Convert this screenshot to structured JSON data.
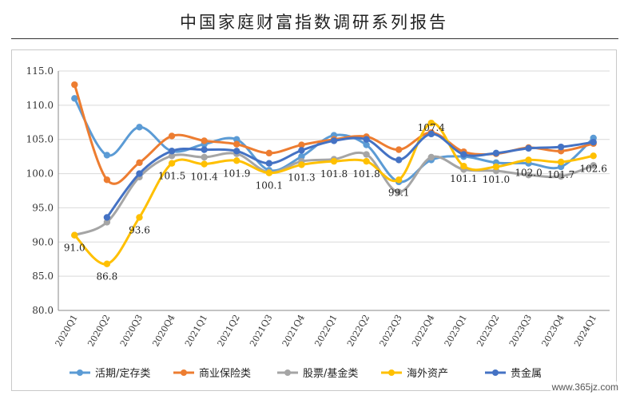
{
  "header": {
    "title": "中国家庭财富指数调研系列报告"
  },
  "watermark": "www.365jz.com",
  "chart_data": {
    "type": "line",
    "title": "",
    "xlabel": "",
    "ylabel": "",
    "ylim": [
      80.0,
      115.0
    ],
    "yticks": [
      "80.0",
      "85.0",
      "90.0",
      "95.0",
      "100.0",
      "105.0",
      "110.0",
      "115.0"
    ],
    "grid": true,
    "legend_position": "bottom",
    "categories": [
      "2020Q1",
      "2020Q2",
      "2020Q3",
      "2020Q4",
      "2021Q1",
      "2021Q2",
      "2021Q3",
      "2021Q4",
      "2022Q1",
      "2022Q2",
      "2022Q3",
      "2022Q4",
      "2023Q1",
      "2023Q2",
      "2023Q3",
      "2023Q4",
      "2024Q1"
    ],
    "series": [
      {
        "name": "活期/定存类",
        "color": "#5b9bd5",
        "values": [
          111.0,
          102.7,
          106.8,
          103.3,
          104.3,
          105.0,
          100.5,
          102.5,
          105.6,
          104.2,
          98.8,
          102.0,
          102.5,
          101.6,
          101.5,
          101.0,
          105.2
        ]
      },
      {
        "name": "商业保险类",
        "color": "#ed7d31",
        "values": [
          113.0,
          99.1,
          101.6,
          105.5,
          104.8,
          104.3,
          103.0,
          104.2,
          105.0,
          105.4,
          103.5,
          106.0,
          103.2,
          102.9,
          103.8,
          103.3,
          104.4
        ]
      },
      {
        "name": "股票/基金类",
        "color": "#a5a5a5",
        "values": [
          91.0,
          92.9,
          99.5,
          102.6,
          102.4,
          102.9,
          100.2,
          101.8,
          102.1,
          102.8,
          97.3,
          102.4,
          100.6,
          100.4,
          99.8,
          99.6,
          101.2
        ]
      },
      {
        "name": "海外资产",
        "color": "#ffc000",
        "values": [
          91.0,
          86.8,
          93.6,
          101.5,
          101.4,
          101.9,
          100.1,
          101.3,
          101.8,
          101.8,
          99.1,
          107.4,
          101.1,
          101.0,
          102.0,
          101.7,
          102.6
        ]
      },
      {
        "name": "贵金属",
        "color": "#4472c4",
        "values": [
          null,
          93.6,
          100.0,
          103.3,
          103.5,
          103.3,
          101.5,
          103.4,
          104.8,
          105.0,
          102.0,
          105.8,
          102.8,
          103.0,
          103.7,
          103.9,
          104.6
        ]
      }
    ],
    "data_labels": {
      "series": "海外资产",
      "labels": [
        "91.0",
        "86.8",
        "93.6",
        "101.5",
        "101.4",
        "101.9",
        "100.1",
        "101.3",
        "101.8",
        "101.8",
        "99.1",
        "107.4",
        "101.1",
        "101.0",
        "102.0",
        "101.7",
        "102.6"
      ]
    }
  }
}
